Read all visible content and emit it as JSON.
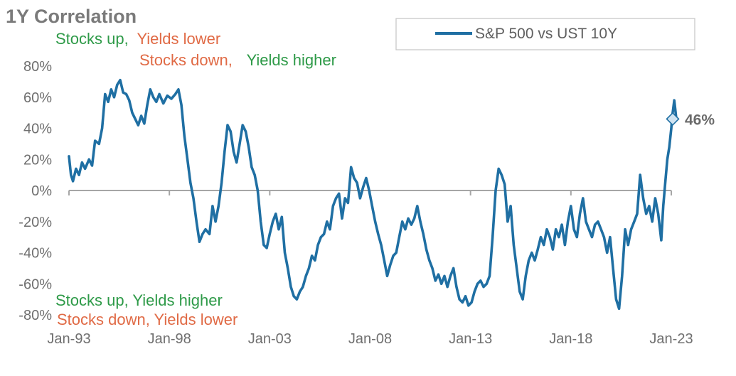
{
  "chart_data": {
    "type": "line",
    "title": "1Y Correlation",
    "xlabel": "",
    "ylabel": "",
    "x_ticks": [
      "Jan-93",
      "Jan-98",
      "Jan-03",
      "Jan-08",
      "Jan-13",
      "Jan-18",
      "Jan-23"
    ],
    "y_ticks": [
      "80%",
      "60%",
      "40%",
      "20%",
      "0%",
      "-20%",
      "-40%",
      "-60%",
      "-80%"
    ],
    "ylim": [
      -80,
      80
    ],
    "xlim": [
      1993.0,
      2023.0
    ],
    "legend": {
      "position": "top-right",
      "label": "S&P 500 vs UST 10Y"
    },
    "end_label": {
      "text": "46%",
      "x": 2023.0,
      "y": 46
    },
    "annotations": {
      "top_line1": {
        "a": "Stocks up,",
        "b": "Yields lower"
      },
      "top_line2": {
        "a": "Stocks down,",
        "b": "Yields higher"
      },
      "bottom_line1": {
        "text": "Stocks up, Yields higher"
      },
      "bottom_line2": {
        "text": "Stocks down, Yields lower"
      }
    },
    "series": [
      {
        "name": "S&P 500 vs UST 10Y",
        "color": "#1f6fa3",
        "points": [
          [
            1993.0,
            22
          ],
          [
            1993.1,
            10
          ],
          [
            1993.2,
            6
          ],
          [
            1993.35,
            14
          ],
          [
            1993.5,
            10
          ],
          [
            1993.65,
            18
          ],
          [
            1993.8,
            14
          ],
          [
            1994.0,
            20
          ],
          [
            1994.15,
            16
          ],
          [
            1994.3,
            32
          ],
          [
            1994.5,
            30
          ],
          [
            1994.65,
            40
          ],
          [
            1994.8,
            62
          ],
          [
            1994.95,
            57
          ],
          [
            1995.1,
            65
          ],
          [
            1995.25,
            60
          ],
          [
            1995.4,
            68
          ],
          [
            1995.55,
            71
          ],
          [
            1995.7,
            63
          ],
          [
            1995.85,
            62
          ],
          [
            1996.0,
            58
          ],
          [
            1996.15,
            50
          ],
          [
            1996.3,
            46
          ],
          [
            1996.45,
            42
          ],
          [
            1996.6,
            48
          ],
          [
            1996.75,
            43
          ],
          [
            1996.9,
            55
          ],
          [
            1997.05,
            65
          ],
          [
            1997.2,
            60
          ],
          [
            1997.35,
            57
          ],
          [
            1997.5,
            62
          ],
          [
            1997.7,
            56
          ],
          [
            1997.9,
            61
          ],
          [
            1998.1,
            59
          ],
          [
            1998.3,
            62
          ],
          [
            1998.45,
            65
          ],
          [
            1998.6,
            55
          ],
          [
            1998.75,
            35
          ],
          [
            1998.9,
            20
          ],
          [
            1999.05,
            5
          ],
          [
            1999.2,
            -5
          ],
          [
            1999.35,
            -20
          ],
          [
            1999.5,
            -33
          ],
          [
            1999.65,
            -28
          ],
          [
            1999.8,
            -25
          ],
          [
            2000.0,
            -28
          ],
          [
            2000.15,
            -10
          ],
          [
            2000.3,
            -20
          ],
          [
            2000.45,
            -10
          ],
          [
            2000.6,
            5
          ],
          [
            2000.75,
            25
          ],
          [
            2000.9,
            42
          ],
          [
            2001.05,
            38
          ],
          [
            2001.2,
            25
          ],
          [
            2001.35,
            18
          ],
          [
            2001.5,
            30
          ],
          [
            2001.65,
            42
          ],
          [
            2001.8,
            38
          ],
          [
            2001.95,
            28
          ],
          [
            2002.1,
            15
          ],
          [
            2002.25,
            10
          ],
          [
            2002.4,
            0
          ],
          [
            2002.55,
            -20
          ],
          [
            2002.7,
            -35
          ],
          [
            2002.85,
            -37
          ],
          [
            2003.0,
            -28
          ],
          [
            2003.15,
            -20
          ],
          [
            2003.3,
            -15
          ],
          [
            2003.45,
            -25
          ],
          [
            2003.6,
            -17
          ],
          [
            2003.75,
            -40
          ],
          [
            2003.9,
            -50
          ],
          [
            2004.05,
            -62
          ],
          [
            2004.2,
            -68
          ],
          [
            2004.35,
            -70
          ],
          [
            2004.5,
            -65
          ],
          [
            2004.65,
            -62
          ],
          [
            2004.8,
            -55
          ],
          [
            2004.95,
            -50
          ],
          [
            2005.1,
            -42
          ],
          [
            2005.25,
            -45
          ],
          [
            2005.4,
            -35
          ],
          [
            2005.55,
            -30
          ],
          [
            2005.7,
            -28
          ],
          [
            2005.85,
            -20
          ],
          [
            2006.0,
            -25
          ],
          [
            2006.15,
            -10
          ],
          [
            2006.3,
            -5
          ],
          [
            2006.45,
            -2
          ],
          [
            2006.6,
            -18
          ],
          [
            2006.75,
            -5
          ],
          [
            2006.9,
            -8
          ],
          [
            2007.05,
            15
          ],
          [
            2007.2,
            8
          ],
          [
            2007.35,
            5
          ],
          [
            2007.5,
            -5
          ],
          [
            2007.65,
            2
          ],
          [
            2007.8,
            8
          ],
          [
            2007.95,
            0
          ],
          [
            2008.1,
            -10
          ],
          [
            2008.25,
            -20
          ],
          [
            2008.4,
            -28
          ],
          [
            2008.55,
            -35
          ],
          [
            2008.7,
            -45
          ],
          [
            2008.85,
            -55
          ],
          [
            2009.0,
            -48
          ],
          [
            2009.15,
            -42
          ],
          [
            2009.3,
            -40
          ],
          [
            2009.45,
            -30
          ],
          [
            2009.6,
            -20
          ],
          [
            2009.75,
            -25
          ],
          [
            2009.9,
            -18
          ],
          [
            2010.05,
            -22
          ],
          [
            2010.2,
            -18
          ],
          [
            2010.35,
            -10
          ],
          [
            2010.5,
            -20
          ],
          [
            2010.65,
            -28
          ],
          [
            2010.8,
            -38
          ],
          [
            2010.95,
            -45
          ],
          [
            2011.1,
            -50
          ],
          [
            2011.25,
            -58
          ],
          [
            2011.4,
            -54
          ],
          [
            2011.55,
            -60
          ],
          [
            2011.7,
            -55
          ],
          [
            2011.85,
            -62
          ],
          [
            2012.0,
            -55
          ],
          [
            2012.15,
            -50
          ],
          [
            2012.3,
            -62
          ],
          [
            2012.45,
            -70
          ],
          [
            2012.6,
            -72
          ],
          [
            2012.75,
            -68
          ],
          [
            2012.9,
            -74
          ],
          [
            2013.05,
            -72
          ],
          [
            2013.2,
            -65
          ],
          [
            2013.35,
            -60
          ],
          [
            2013.5,
            -58
          ],
          [
            2013.65,
            -62
          ],
          [
            2013.8,
            -60
          ],
          [
            2013.95,
            -55
          ],
          [
            2014.1,
            -30
          ],
          [
            2014.25,
            0
          ],
          [
            2014.4,
            14
          ],
          [
            2014.55,
            10
          ],
          [
            2014.7,
            4
          ],
          [
            2014.85,
            -20
          ],
          [
            2015.0,
            -10
          ],
          [
            2015.15,
            -35
          ],
          [
            2015.3,
            -50
          ],
          [
            2015.45,
            -65
          ],
          [
            2015.6,
            -70
          ],
          [
            2015.75,
            -55
          ],
          [
            2015.9,
            -45
          ],
          [
            2016.05,
            -40
          ],
          [
            2016.2,
            -45
          ],
          [
            2016.35,
            -38
          ],
          [
            2016.5,
            -30
          ],
          [
            2016.65,
            -35
          ],
          [
            2016.8,
            -25
          ],
          [
            2016.95,
            -30
          ],
          [
            2017.1,
            -38
          ],
          [
            2017.25,
            -25
          ],
          [
            2017.4,
            -30
          ],
          [
            2017.55,
            -22
          ],
          [
            2017.7,
            -35
          ],
          [
            2017.85,
            -20
          ],
          [
            2018.0,
            -10
          ],
          [
            2018.15,
            -25
          ],
          [
            2018.3,
            -30
          ],
          [
            2018.45,
            -15
          ],
          [
            2018.6,
            -5
          ],
          [
            2018.75,
            -20
          ],
          [
            2018.9,
            -25
          ],
          [
            2019.05,
            -30
          ],
          [
            2019.2,
            -22
          ],
          [
            2019.35,
            -20
          ],
          [
            2019.5,
            -25
          ],
          [
            2019.65,
            -30
          ],
          [
            2019.8,
            -40
          ],
          [
            2019.95,
            -30
          ],
          [
            2020.1,
            -50
          ],
          [
            2020.25,
            -70
          ],
          [
            2020.4,
            -76
          ],
          [
            2020.55,
            -55
          ],
          [
            2020.7,
            -25
          ],
          [
            2020.85,
            -35
          ],
          [
            2021.0,
            -25
          ],
          [
            2021.15,
            -20
          ],
          [
            2021.3,
            -15
          ],
          [
            2021.45,
            10
          ],
          [
            2021.6,
            -5
          ],
          [
            2021.75,
            -15
          ],
          [
            2021.9,
            -10
          ],
          [
            2022.05,
            -20
          ],
          [
            2022.2,
            -5
          ],
          [
            2022.35,
            -15
          ],
          [
            2022.5,
            -32
          ],
          [
            2022.6,
            -10
          ],
          [
            2022.7,
            5
          ],
          [
            2022.8,
            20
          ],
          [
            2022.9,
            28
          ],
          [
            2023.0,
            40
          ],
          [
            2023.05,
            48
          ],
          [
            2023.15,
            58
          ],
          [
            2023.25,
            46
          ]
        ]
      }
    ]
  }
}
